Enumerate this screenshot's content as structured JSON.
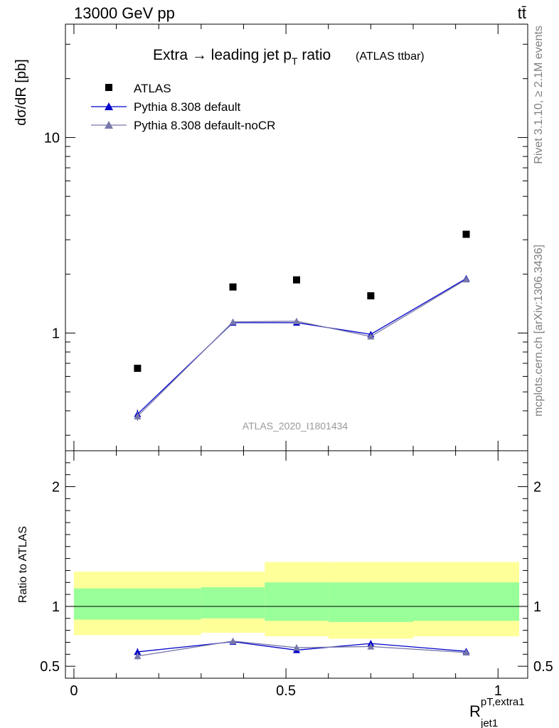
{
  "header": {
    "energy_label": "13000 GeV pp",
    "process_label": "tt̄"
  },
  "side_labels": {
    "rivet": "Rivet 3.1.10, ≥ 2.1M events",
    "mcplots": "mcplots.cern.ch [arXiv:1306.3436]"
  },
  "chart_data": [
    {
      "type": "scatter",
      "title_main": "Extra → leading jet p",
      "title_sub": "T",
      "title_tail": " ratio",
      "title_tag": "(ATLAS ttbar)",
      "watermark": "ATLAS_2020_I1801434",
      "ylabel": "dσ/dR [pb]",
      "yscale": "log",
      "ylim": [
        0.25,
        38
      ],
      "xlim": [
        -0.02,
        1.07
      ],
      "yticks": [
        {
          "v": 1,
          "label": "1"
        },
        {
          "v": 10,
          "label": "10"
        }
      ],
      "legend_position": "top-left",
      "series": [
        {
          "name": "ATLAS",
          "marker": "square",
          "color": "#000000",
          "x": [
            0.15,
            0.375,
            0.525,
            0.7,
            0.925
          ],
          "y": [
            0.66,
            1.72,
            1.87,
            1.55,
            3.2
          ]
        },
        {
          "name": "Pythia 8.308 default",
          "marker": "triangle",
          "color": "#0000cc",
          "x": [
            0.15,
            0.375,
            0.525,
            0.7,
            0.925
          ],
          "y": [
            0.385,
            1.13,
            1.13,
            0.985,
            1.9
          ],
          "err": [
            0.02,
            0.03,
            0.03,
            0.03,
            0.04
          ]
        },
        {
          "name": "Pythia 8.308 default-noCR",
          "marker": "triangle",
          "color": "#7777aa",
          "x": [
            0.15,
            0.375,
            0.525,
            0.7,
            0.925
          ],
          "y": [
            0.375,
            1.14,
            1.15,
            0.96,
            1.88
          ],
          "err": [
            0.02,
            0.03,
            0.03,
            0.03,
            0.04
          ]
        }
      ]
    },
    {
      "type": "scatter",
      "ylabel": "Ratio to ATLAS",
      "xlabel_main": "R",
      "xlabel_sup": "pT,extra1",
      "xlabel_sub": "jet1",
      "xlim": [
        -0.02,
        1.07
      ],
      "ylim": [
        0.4,
        2.3
      ],
      "yticks": [
        {
          "v": 0.5,
          "label": "0.5"
        },
        {
          "v": 1,
          "label": "1"
        },
        {
          "v": 2,
          "label": "2"
        }
      ],
      "xticks": [
        {
          "v": 0,
          "label": "0"
        },
        {
          "v": 0.5,
          "label": "0.5"
        },
        {
          "v": 1,
          "label": "1"
        }
      ],
      "bands": [
        {
          "x0": 0.0,
          "x1": 0.3,
          "yellow": [
            0.76,
            1.29
          ],
          "green": [
            0.89,
            1.15
          ]
        },
        {
          "x0": 0.3,
          "x1": 0.45,
          "yellow": [
            0.78,
            1.29
          ],
          "green": [
            0.9,
            1.16
          ]
        },
        {
          "x0": 0.45,
          "x1": 0.6,
          "yellow": [
            0.75,
            1.37
          ],
          "green": [
            0.88,
            1.2
          ]
        },
        {
          "x0": 0.6,
          "x1": 0.8,
          "yellow": [
            0.73,
            1.37
          ],
          "green": [
            0.87,
            1.2
          ]
        },
        {
          "x0": 0.8,
          "x1": 1.05,
          "yellow": [
            0.75,
            1.37
          ],
          "green": [
            0.88,
            1.2
          ]
        }
      ],
      "series": [
        {
          "name": "Pythia 8.308 default",
          "color": "#0000cc",
          "x": [
            0.15,
            0.375,
            0.525,
            0.7,
            0.925
          ],
          "y": [
            0.62,
            0.705,
            0.635,
            0.69,
            0.625
          ],
          "err": [
            0.03,
            0.025,
            0.025,
            0.025,
            0.015
          ]
        },
        {
          "name": "Pythia 8.308 default-noCR",
          "color": "#7777aa",
          "x": [
            0.15,
            0.375,
            0.525,
            0.7,
            0.925
          ],
          "y": [
            0.585,
            0.71,
            0.655,
            0.665,
            0.615
          ],
          "err": [
            0.03,
            0.025,
            0.025,
            0.025,
            0.015
          ]
        }
      ]
    }
  ]
}
